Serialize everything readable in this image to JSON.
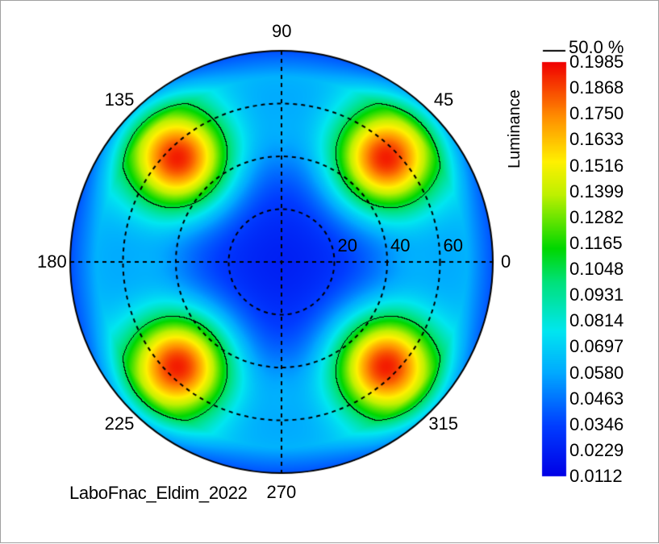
{
  "chart_data": {
    "type": "heatmap",
    "subtype": "polar-conoscopic",
    "colorbar_title": "Luminance",
    "colorbar_ticks": [
      "0.1985",
      "0.1868",
      "0.1750",
      "0.1633",
      "0.1516",
      "0.1399",
      "0.1282",
      "0.1165",
      "0.1048",
      "0.0931",
      "0.0814",
      "0.0697",
      "0.0580",
      "0.0463",
      "0.0346",
      "0.0229",
      "0.0112"
    ],
    "value_range": [
      0.0112,
      0.1985
    ],
    "contour_legend": "50.0 %",
    "contour_level": 0.1048,
    "azimuth_labels": [
      {
        "angle": 0,
        "text": "0"
      },
      {
        "angle": 45,
        "text": "45"
      },
      {
        "angle": 90,
        "text": "90"
      },
      {
        "angle": 135,
        "text": "135"
      },
      {
        "angle": 180,
        "text": "180"
      },
      {
        "angle": 225,
        "text": "225"
      },
      {
        "angle": 270,
        "text": "270"
      },
      {
        "angle": 315,
        "text": "315"
      }
    ],
    "radial_rings": [
      20,
      40,
      60
    ],
    "radial_labels": [
      "20",
      "40",
      "60"
    ],
    "radial_max": 80,
    "hotspots": [
      {
        "azimuth": 45,
        "inclination": 55,
        "peak": 0.1985
      },
      {
        "azimuth": 135,
        "inclination": 55,
        "peak": 0.1985
      },
      {
        "azimuth": 225,
        "inclination": 55,
        "peak": 0.1985
      },
      {
        "azimuth": 315,
        "inclination": 55,
        "peak": 0.1985
      }
    ],
    "center_value": 0.0229,
    "footer": "LaboFnac_Eldim_2022"
  }
}
